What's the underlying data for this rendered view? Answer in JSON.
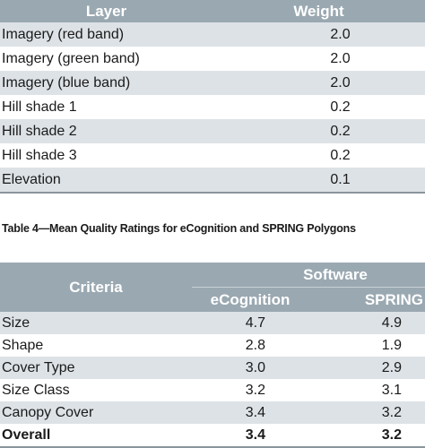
{
  "table1": {
    "headers": {
      "layer": "Layer",
      "weight": "Weight"
    },
    "rows": [
      {
        "layer": "Imagery (red band)",
        "weight": "2.0"
      },
      {
        "layer": "Imagery (green band)",
        "weight": "2.0"
      },
      {
        "layer": "Imagery (blue band)",
        "weight": "2.0"
      },
      {
        "layer": "Hill shade 1",
        "weight": "0.2"
      },
      {
        "layer": "Hill shade 2",
        "weight": "0.2"
      },
      {
        "layer": "Hill shade 3",
        "weight": "0.2"
      },
      {
        "layer": "Elevation",
        "weight": "0.1"
      }
    ]
  },
  "caption": "Table 4—Mean Quality Ratings for eCognition and SPRING Polygons",
  "table2": {
    "headers": {
      "criteria": "Criteria",
      "software": "Software",
      "ecognition": "eCognition",
      "spring": "SPRING"
    },
    "rows": [
      {
        "criteria": "Size",
        "ecognition": "4.7",
        "spring": "4.9"
      },
      {
        "criteria": "Shape",
        "ecognition": "2.8",
        "spring": "1.9"
      },
      {
        "criteria": "Cover Type",
        "ecognition": "3.0",
        "spring": "2.9"
      },
      {
        "criteria": "Size Class",
        "ecognition": "3.2",
        "spring": "3.1"
      },
      {
        "criteria": "Canopy Cover",
        "ecognition": "3.4",
        "spring": "3.2"
      }
    ],
    "overall": {
      "criteria": "Overall",
      "ecognition": "3.4",
      "spring": "3.2"
    }
  }
}
